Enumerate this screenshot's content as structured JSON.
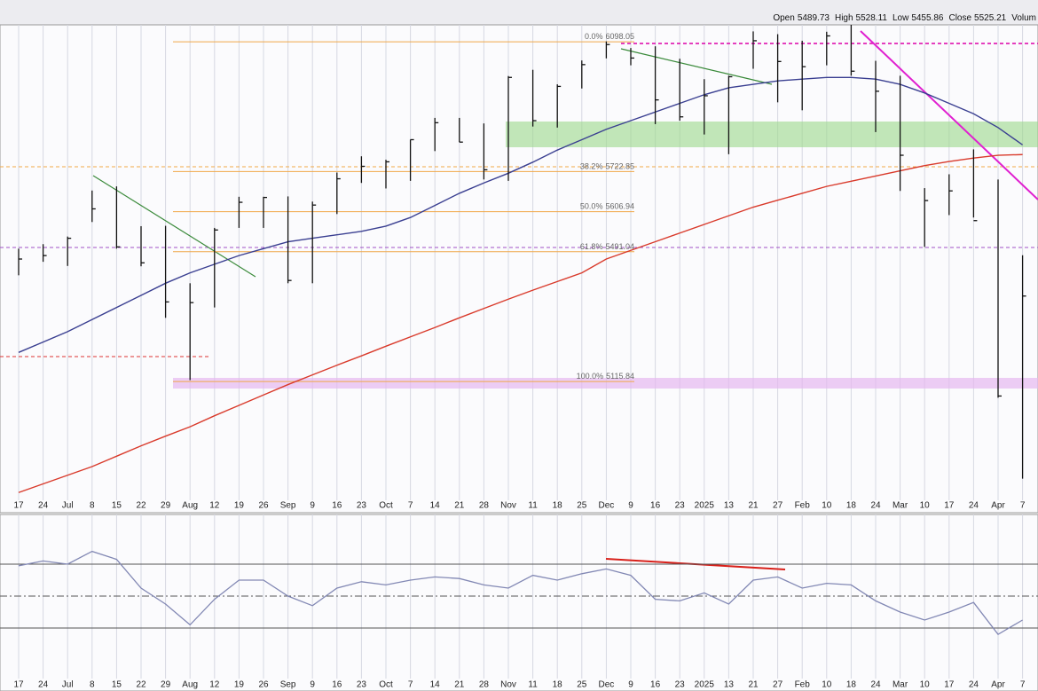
{
  "chart_data": [
    {
      "type": "ohlc",
      "quote": [
        {
          "label": "Open",
          "value": 5489.73
        },
        {
          "label": "High",
          "value": 5528.11
        },
        {
          "label": "Low",
          "value": 5455.86
        },
        {
          "label": "Close",
          "value": 5525.21
        },
        {
          "label": "Volum"
        }
      ],
      "categories": [
        "17",
        "24",
        "Jul",
        "8",
        "15",
        "22",
        "29",
        "Aug",
        "12",
        "19",
        "26",
        "Sep",
        "9",
        "16",
        "23",
        "Oct",
        "7",
        "14",
        "21",
        "28",
        "Nov",
        "11",
        "18",
        "25",
        "Dec",
        "9",
        "16",
        "23",
        "2025",
        "13",
        "21",
        "27",
        "Feb",
        "10",
        "18",
        "24",
        "Mar",
        "10",
        "17",
        "24",
        "Apr",
        "7"
      ],
      "high": [
        5500,
        5513,
        5535,
        5668,
        5680,
        5565,
        5566,
        5400,
        5560,
        5650,
        5650,
        5651,
        5636,
        5720,
        5767,
        5757,
        5815,
        5878,
        5878,
        5862,
        5999,
        6017,
        5975,
        6044,
        6099,
        6080,
        6085,
        6049,
        5990,
        6000,
        6128,
        6120,
        6101,
        6127,
        6147,
        6043,
        6000,
        5675,
        5715,
        5787,
        5700,
        5481
      ],
      "low": [
        5423,
        5462,
        5450,
        5577,
        5500,
        5449,
        5300,
        5120,
        5330,
        5560,
        5560,
        5400,
        5400,
        5600,
        5690,
        5674,
        5696,
        5782,
        5808,
        5700,
        5696,
        5853,
        5850,
        5963,
        6050,
        6030,
        5860,
        5870,
        5830,
        5773,
        6020,
        5923,
        5900,
        6030,
        6000,
        5837,
        5667,
        5505,
        5597,
        5590,
        5069,
        4835
      ],
      "close": [
        5470,
        5480,
        5530,
        5615,
        5505,
        5459,
        5346,
        5344,
        5554,
        5634,
        5648,
        5408,
        5626,
        5702,
        5738,
        5751,
        5815,
        5864,
        5808,
        5728,
        5995,
        5870,
        5969,
        6032,
        6090,
        6051,
        5930,
        5881,
        5942,
        5997,
        6101,
        6041,
        6026,
        6115,
        6013,
        5955,
        5770,
        5639,
        5667,
        5581,
        5074,
        5363
      ],
      "color": "#111111",
      "overlays": [
        {
          "color": "#3a3f91",
          "values": [
            5200,
            5230,
            5260,
            5295,
            5330,
            5365,
            5400,
            5430,
            5455,
            5480,
            5500,
            5520,
            5530,
            5540,
            5550,
            5565,
            5590,
            5625,
            5660,
            5690,
            5718,
            5750,
            5785,
            5815,
            5845,
            5870,
            5895,
            5920,
            5945,
            5965,
            5975,
            5985,
            5990,
            5995,
            5995,
            5990,
            5975,
            5950,
            5920,
            5890,
            5850,
            5800
          ]
        },
        {
          "color": "#d93a2b",
          "values": [
            4795,
            4820,
            4845,
            4870,
            4900,
            4930,
            4958,
            4985,
            5017,
            5047,
            5077,
            5107,
            5135,
            5163,
            5190,
            5218,
            5245,
            5272,
            5300,
            5327,
            5354,
            5380,
            5405,
            5430,
            5470,
            5495,
            5520,
            5545,
            5570,
            5595,
            5620,
            5640,
            5660,
            5680,
            5695,
            5710,
            5725,
            5740,
            5752,
            5762,
            5770,
            5772
          ]
        }
      ],
      "levels": [
        {
          "label": "0.0%",
          "value": 6098.05
        },
        {
          "label": "38.2%",
          "value": 5722.85
        },
        {
          "label": "50.0%",
          "value": 5606.94
        },
        {
          "label": "61.8%",
          "value": 5491.04
        },
        {
          "label": "100.0%",
          "value": 5115.84
        }
      ],
      "level_color": "#f0a848",
      "ylim": [
        4770,
        6147
      ],
      "grid": true
    },
    {
      "type": "line",
      "categories": [
        "17",
        "24",
        "Jul",
        "8",
        "15",
        "22",
        "29",
        "Aug",
        "12",
        "19",
        "26",
        "Sep",
        "9",
        "16",
        "23",
        "Oct",
        "7",
        "14",
        "21",
        "28",
        "Nov",
        "11",
        "18",
        "25",
        "Dec",
        "9",
        "16",
        "23",
        "2025",
        "13",
        "21",
        "27",
        "Feb",
        "10",
        "18",
        "24",
        "Mar",
        "10",
        "17",
        "24",
        "Apr",
        "7"
      ],
      "values": [
        69,
        72,
        70,
        78,
        73,
        55,
        45,
        32,
        48,
        60,
        60,
        50,
        44,
        55,
        59,
        57,
        60,
        62,
        61,
        57,
        55,
        63,
        60,
        64,
        67,
        63,
        48,
        47,
        52,
        45,
        60,
        62,
        55,
        58,
        57,
        47,
        40,
        35,
        40,
        46,
        26,
        35
      ],
      "color": "#8288b4",
      "reference_lines": [
        70,
        50,
        30
      ],
      "ylim": [
        0,
        100
      ],
      "grid": true
    }
  ]
}
